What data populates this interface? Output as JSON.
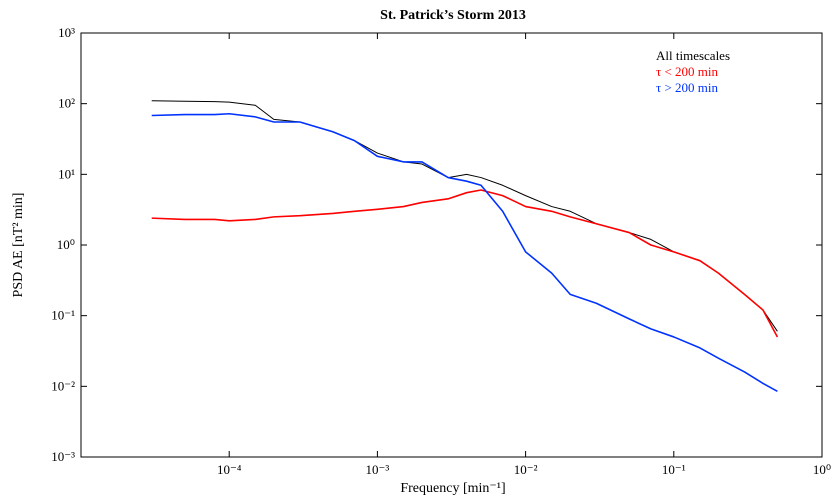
{
  "chart_data": {
    "type": "line",
    "title": "St. Patrick’s Storm 2013",
    "x_label": "Frequency [min⁻¹]",
    "y_label": "PSD AE [nT² min]",
    "x_log": true,
    "y_log": true,
    "legend_position": "upper right",
    "xlim": [
      1e-05,
      1
    ],
    "ylim": [
      0.001,
      1000
    ],
    "xticks": [
      {
        "value": 0.0001,
        "label": "10⁻⁴"
      },
      {
        "value": 0.001,
        "label": "10⁻³"
      },
      {
        "value": 0.01,
        "label": "10⁻²"
      },
      {
        "value": 0.1,
        "label": "10⁻¹"
      },
      {
        "value": 1,
        "label": "10⁰"
      }
    ],
    "yticks": [
      {
        "value": 0.001,
        "label": "10⁻³"
      },
      {
        "value": 0.01,
        "label": "10⁻²"
      },
      {
        "value": 0.1,
        "label": "10⁻¹"
      },
      {
        "value": 1,
        "label": "10⁰"
      },
      {
        "value": 10,
        "label": "10¹"
      },
      {
        "value": 100,
        "label": "10²"
      },
      {
        "value": 1000,
        "label": "10³"
      }
    ],
    "x": [
      3e-05,
      5e-05,
      8e-05,
      0.0001,
      0.00015,
      0.0002,
      0.0003,
      0.0005,
      0.0007,
      0.001,
      0.0015,
      0.002,
      0.003,
      0.004,
      0.005,
      0.007,
      0.01,
      0.015,
      0.02,
      0.03,
      0.05,
      0.07,
      0.1,
      0.15,
      0.2,
      0.3,
      0.4,
      0.5
    ],
    "series": [
      {
        "name": "All timescales",
        "color": "#000000",
        "width": 1,
        "values": [
          110,
          108,
          107,
          105,
          95,
          60,
          55,
          40,
          30,
          20,
          15,
          14,
          9,
          10,
          9,
          7,
          5,
          3.5,
          3,
          2,
          1.5,
          1.2,
          0.8,
          0.6,
          0.4,
          0.2,
          0.12,
          0.06
        ]
      },
      {
        "name": "τ < 200 min",
        "color": "#ff0000",
        "width": 1.6,
        "values": [
          2.4,
          2.3,
          2.3,
          2.2,
          2.3,
          2.5,
          2.6,
          2.8,
          3.0,
          3.2,
          3.5,
          4.0,
          4.5,
          5.5,
          6.0,
          5.0,
          3.5,
          3.0,
          2.5,
          2.0,
          1.5,
          1.0,
          0.8,
          0.6,
          0.4,
          0.2,
          0.12,
          0.05
        ]
      },
      {
        "name": "τ > 200 min",
        "color": "#0033ff",
        "width": 1.6,
        "values": [
          68,
          70,
          70,
          72,
          65,
          55,
          55,
          40,
          30,
          18,
          15,
          15,
          9,
          8,
          7,
          3,
          0.8,
          0.4,
          0.2,
          0.15,
          0.09,
          0.065,
          0.05,
          0.035,
          0.025,
          0.016,
          0.011,
          0.0085
        ]
      }
    ]
  }
}
